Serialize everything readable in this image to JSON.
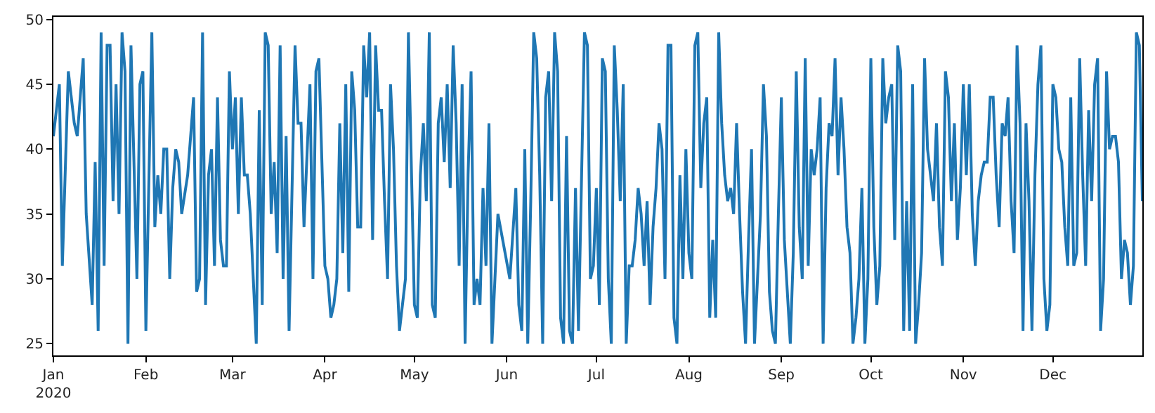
{
  "chart_data": {
    "type": "line",
    "line_style": "solid",
    "marker": "none",
    "xlim": [
      "2020-01-01",
      "2020-12-31"
    ],
    "ylim": [
      24.1,
      50.2
    ],
    "yticks": [
      25,
      30,
      35,
      40,
      45,
      50
    ],
    "xticks": [
      {
        "value": "2020-01-01",
        "label": "Jan\n2020"
      },
      {
        "value": "2020-02-01",
        "label": "Feb"
      },
      {
        "value": "2020-03-01",
        "label": "Mar"
      },
      {
        "value": "2020-04-01",
        "label": "Apr"
      },
      {
        "value": "2020-05-01",
        "label": "May"
      },
      {
        "value": "2020-06-01",
        "label": "Jun"
      },
      {
        "value": "2020-07-01",
        "label": "Jul"
      },
      {
        "value": "2020-08-01",
        "label": "Aug"
      },
      {
        "value": "2020-09-01",
        "label": "Sep"
      },
      {
        "value": "2020-10-01",
        "label": "Oct"
      },
      {
        "value": "2020-11-01",
        "label": "Nov"
      },
      {
        "value": "2020-12-01",
        "label": "Dec"
      }
    ],
    "series": [
      {
        "color": "#1f77b4",
        "x": [
          "2020-01-01",
          "2020-01-03",
          "2020-01-04",
          "2020-01-06",
          "2020-01-08",
          "2020-01-09",
          "2020-01-11",
          "2020-01-12",
          "2020-01-14",
          "2020-01-15",
          "2020-01-16",
          "2020-01-17",
          "2020-01-18",
          "2020-01-19",
          "2020-01-20",
          "2020-01-21",
          "2020-01-22",
          "2020-01-23",
          "2020-01-24",
          "2020-01-25",
          "2020-01-26",
          "2020-01-27",
          "2020-01-29",
          "2020-01-30",
          "2020-01-31",
          "2020-02-01",
          "2020-02-03",
          "2020-02-04",
          "2020-02-05",
          "2020-02-06",
          "2020-02-07",
          "2020-02-08",
          "2020-02-09",
          "2020-02-10",
          "2020-02-11",
          "2020-02-12",
          "2020-02-13",
          "2020-02-15",
          "2020-02-17",
          "2020-02-18",
          "2020-02-19",
          "2020-02-20",
          "2020-02-21",
          "2020-02-22",
          "2020-02-23",
          "2020-02-24",
          "2020-02-25",
          "2020-02-26",
          "2020-02-27",
          "2020-02-28",
          "2020-02-29",
          "2020-03-01",
          "2020-03-02",
          "2020-03-03",
          "2020-03-04",
          "2020-03-05",
          "2020-03-06",
          "2020-03-07",
          "2020-03-08",
          "2020-03-09",
          "2020-03-10",
          "2020-03-11",
          "2020-03-12",
          "2020-03-13",
          "2020-03-14",
          "2020-03-15",
          "2020-03-16",
          "2020-03-17",
          "2020-03-18",
          "2020-03-19",
          "2020-03-20",
          "2020-03-21",
          "2020-03-22",
          "2020-03-23",
          "2020-03-24",
          "2020-03-25",
          "2020-03-27",
          "2020-03-28",
          "2020-03-29",
          "2020-03-30",
          "2020-04-01",
          "2020-04-02",
          "2020-04-03",
          "2020-04-04",
          "2020-04-05",
          "2020-04-06",
          "2020-04-07",
          "2020-04-08",
          "2020-04-09",
          "2020-04-10",
          "2020-04-11",
          "2020-04-12",
          "2020-04-13",
          "2020-04-14",
          "2020-04-15",
          "2020-04-16",
          "2020-04-17",
          "2020-04-18",
          "2020-04-19",
          "2020-04-20",
          "2020-04-21",
          "2020-04-22",
          "2020-04-23",
          "2020-04-24",
          "2020-04-25",
          "2020-04-26",
          "2020-04-27",
          "2020-04-28",
          "2020-04-29",
          "2020-05-01",
          "2020-05-02",
          "2020-05-03",
          "2020-05-04",
          "2020-05-05",
          "2020-05-06",
          "2020-05-07",
          "2020-05-08",
          "2020-05-09",
          "2020-05-10",
          "2020-05-11",
          "2020-05-12",
          "2020-05-13",
          "2020-05-14",
          "2020-05-15",
          "2020-05-16",
          "2020-05-17",
          "2020-05-18",
          "2020-05-19",
          "2020-05-20",
          "2020-05-21",
          "2020-05-22",
          "2020-05-23",
          "2020-05-24",
          "2020-05-25",
          "2020-05-26",
          "2020-05-27",
          "2020-05-28",
          "2020-05-29",
          "2020-06-02",
          "2020-06-04",
          "2020-06-05",
          "2020-06-06",
          "2020-06-07",
          "2020-06-08",
          "2020-06-09",
          "2020-06-10",
          "2020-06-11",
          "2020-06-12",
          "2020-06-13",
          "2020-06-14",
          "2020-06-15",
          "2020-06-16",
          "2020-06-17",
          "2020-06-18",
          "2020-06-19",
          "2020-06-20",
          "2020-06-21",
          "2020-06-22",
          "2020-06-23",
          "2020-06-24",
          "2020-06-25",
          "2020-06-27",
          "2020-06-28",
          "2020-06-29",
          "2020-06-30",
          "2020-07-01",
          "2020-07-02",
          "2020-07-03",
          "2020-07-04",
          "2020-07-05",
          "2020-07-06",
          "2020-07-07",
          "2020-07-08",
          "2020-07-09",
          "2020-07-10",
          "2020-07-11",
          "2020-07-12",
          "2020-07-13",
          "2020-07-14",
          "2020-07-15",
          "2020-07-16",
          "2020-07-17",
          "2020-07-18",
          "2020-07-19",
          "2020-07-20",
          "2020-07-21",
          "2020-07-22",
          "2020-07-23",
          "2020-07-24",
          "2020-07-25",
          "2020-07-26",
          "2020-07-27",
          "2020-07-28",
          "2020-07-29",
          "2020-07-30",
          "2020-07-31",
          "2020-08-01",
          "2020-08-02",
          "2020-08-03",
          "2020-08-04",
          "2020-08-05",
          "2020-08-06",
          "2020-08-07",
          "2020-08-08",
          "2020-08-09",
          "2020-08-10",
          "2020-08-11",
          "2020-08-12",
          "2020-08-13",
          "2020-08-14",
          "2020-08-15",
          "2020-08-16",
          "2020-08-17",
          "2020-08-18",
          "2020-08-19",
          "2020-08-20",
          "2020-08-21",
          "2020-08-22",
          "2020-08-23",
          "2020-08-24",
          "2020-08-25",
          "2020-08-26",
          "2020-08-27",
          "2020-08-28",
          "2020-08-29",
          "2020-08-30",
          "2020-08-31",
          "2020-09-01",
          "2020-09-02",
          "2020-09-04",
          "2020-09-05",
          "2020-09-06",
          "2020-09-07",
          "2020-09-08",
          "2020-09-09",
          "2020-09-10",
          "2020-09-11",
          "2020-09-12",
          "2020-09-13",
          "2020-09-14",
          "2020-09-15",
          "2020-09-16",
          "2020-09-17",
          "2020-09-18",
          "2020-09-19",
          "2020-09-20",
          "2020-09-21",
          "2020-09-22",
          "2020-09-23",
          "2020-09-24",
          "2020-09-25",
          "2020-09-26",
          "2020-09-27",
          "2020-09-28",
          "2020-09-29",
          "2020-09-30",
          "2020-10-01",
          "2020-10-02",
          "2020-10-03",
          "2020-10-04",
          "2020-10-05",
          "2020-10-06",
          "2020-10-07",
          "2020-10-08",
          "2020-10-09",
          "2020-10-10",
          "2020-10-11",
          "2020-10-12",
          "2020-10-13",
          "2020-10-14",
          "2020-10-15",
          "2020-10-16",
          "2020-10-17",
          "2020-10-18",
          "2020-10-19",
          "2020-10-20",
          "2020-10-21",
          "2020-10-22",
          "2020-10-23",
          "2020-10-24",
          "2020-10-25",
          "2020-10-26",
          "2020-10-27",
          "2020-10-28",
          "2020-10-29",
          "2020-10-30",
          "2020-10-31",
          "2020-11-01",
          "2020-11-02",
          "2020-11-03",
          "2020-11-04",
          "2020-11-05",
          "2020-11-06",
          "2020-11-07",
          "2020-11-08",
          "2020-11-09",
          "2020-11-10",
          "2020-11-11",
          "2020-11-12",
          "2020-11-13",
          "2020-11-14",
          "2020-11-15",
          "2020-11-16",
          "2020-11-17",
          "2020-11-18",
          "2020-11-19",
          "2020-11-20",
          "2020-11-21",
          "2020-11-22",
          "2020-11-23",
          "2020-11-24",
          "2020-11-25",
          "2020-11-26",
          "2020-11-27",
          "2020-11-28",
          "2020-11-29",
          "2020-11-30",
          "2020-12-01",
          "2020-12-02",
          "2020-12-03",
          "2020-12-04",
          "2020-12-05",
          "2020-12-06",
          "2020-12-07",
          "2020-12-08",
          "2020-12-09",
          "2020-12-10",
          "2020-12-11",
          "2020-12-12",
          "2020-12-13",
          "2020-12-14",
          "2020-12-15",
          "2020-12-16",
          "2020-12-17",
          "2020-12-18",
          "2020-12-19",
          "2020-12-20",
          "2020-12-21",
          "2020-12-22",
          "2020-12-23",
          "2020-12-24",
          "2020-12-25",
          "2020-12-26",
          "2020-12-27",
          "2020-12-28",
          "2020-12-29",
          "2020-12-30",
          "2020-12-31"
        ],
        "values": [
          41,
          45,
          31,
          46,
          42,
          41,
          47,
          35,
          28,
          39,
          26,
          49,
          31,
          48,
          48,
          36,
          45,
          35,
          49,
          46,
          25,
          48,
          30,
          45,
          46,
          26,
          49,
          34,
          38,
          35,
          40,
          40,
          30,
          37,
          40,
          39,
          35,
          38,
          44,
          29,
          30,
          49,
          28,
          38,
          40,
          31,
          44,
          33,
          31,
          31,
          46,
          40,
          44,
          35,
          44,
          38,
          38,
          35,
          30,
          25,
          43,
          28,
          49,
          48,
          35,
          39,
          32,
          48,
          30,
          41,
          26,
          37,
          48,
          42,
          42,
          34,
          45,
          30,
          46,
          47,
          31,
          30,
          27,
          28,
          30,
          42,
          32,
          45,
          29,
          46,
          43,
          34,
          34,
          48,
          44,
          49,
          33,
          48,
          43,
          43,
          36,
          30,
          45,
          40,
          31,
          26,
          28,
          30,
          49,
          28,
          27,
          38,
          42,
          36,
          49,
          28,
          27,
          42,
          44,
          39,
          45,
          37,
          48,
          42,
          31,
          45,
          25,
          38,
          46,
          28,
          30,
          28,
          37,
          31,
          42,
          25,
          30,
          35,
          30,
          37,
          28,
          26,
          40,
          25,
          36,
          49,
          47,
          38,
          25,
          44,
          46,
          36,
          49,
          46,
          27,
          25,
          41,
          26,
          25,
          37,
          26,
          49,
          48,
          30,
          31,
          37,
          28,
          47,
          46,
          30,
          25,
          48,
          43,
          36,
          45,
          25,
          31,
          31,
          33,
          37,
          35,
          31,
          36,
          28,
          34,
          37,
          42,
          40,
          30,
          48,
          48,
          27,
          25,
          38,
          30,
          40,
          32,
          30,
          48,
          49,
          37,
          42,
          44,
          27,
          33,
          27,
          49,
          42,
          38,
          36,
          37,
          35,
          42,
          35,
          29,
          25,
          33,
          40,
          25,
          30,
          35,
          45,
          41,
          29,
          26,
          25,
          35,
          44,
          33,
          25,
          32,
          46,
          34,
          30,
          47,
          31,
          40,
          38,
          40,
          44,
          25,
          37,
          42,
          41,
          47,
          38,
          44,
          40,
          34,
          32,
          25,
          27,
          30,
          37,
          25,
          30,
          47,
          34,
          28,
          31,
          47,
          42,
          44,
          45,
          33,
          48,
          46,
          26,
          36,
          26,
          45,
          25,
          28,
          32,
          47,
          40,
          38,
          36,
          42,
          34,
          31,
          46,
          44,
          36,
          42,
          33,
          37,
          45,
          38,
          45,
          35,
          31,
          36,
          38,
          39,
          39,
          44,
          44,
          38,
          34,
          42,
          41,
          44,
          36,
          32,
          48,
          42,
          26,
          42,
          36,
          26,
          38,
          45,
          48,
          30,
          26,
          28,
          45,
          44,
          40,
          39,
          34,
          31,
          44,
          31,
          32,
          47,
          38,
          31,
          43,
          36,
          45,
          47,
          26,
          30,
          46,
          40,
          41,
          41,
          39,
          30,
          33,
          32,
          28,
          31,
          49,
          48,
          36
        ]
      }
    ]
  }
}
